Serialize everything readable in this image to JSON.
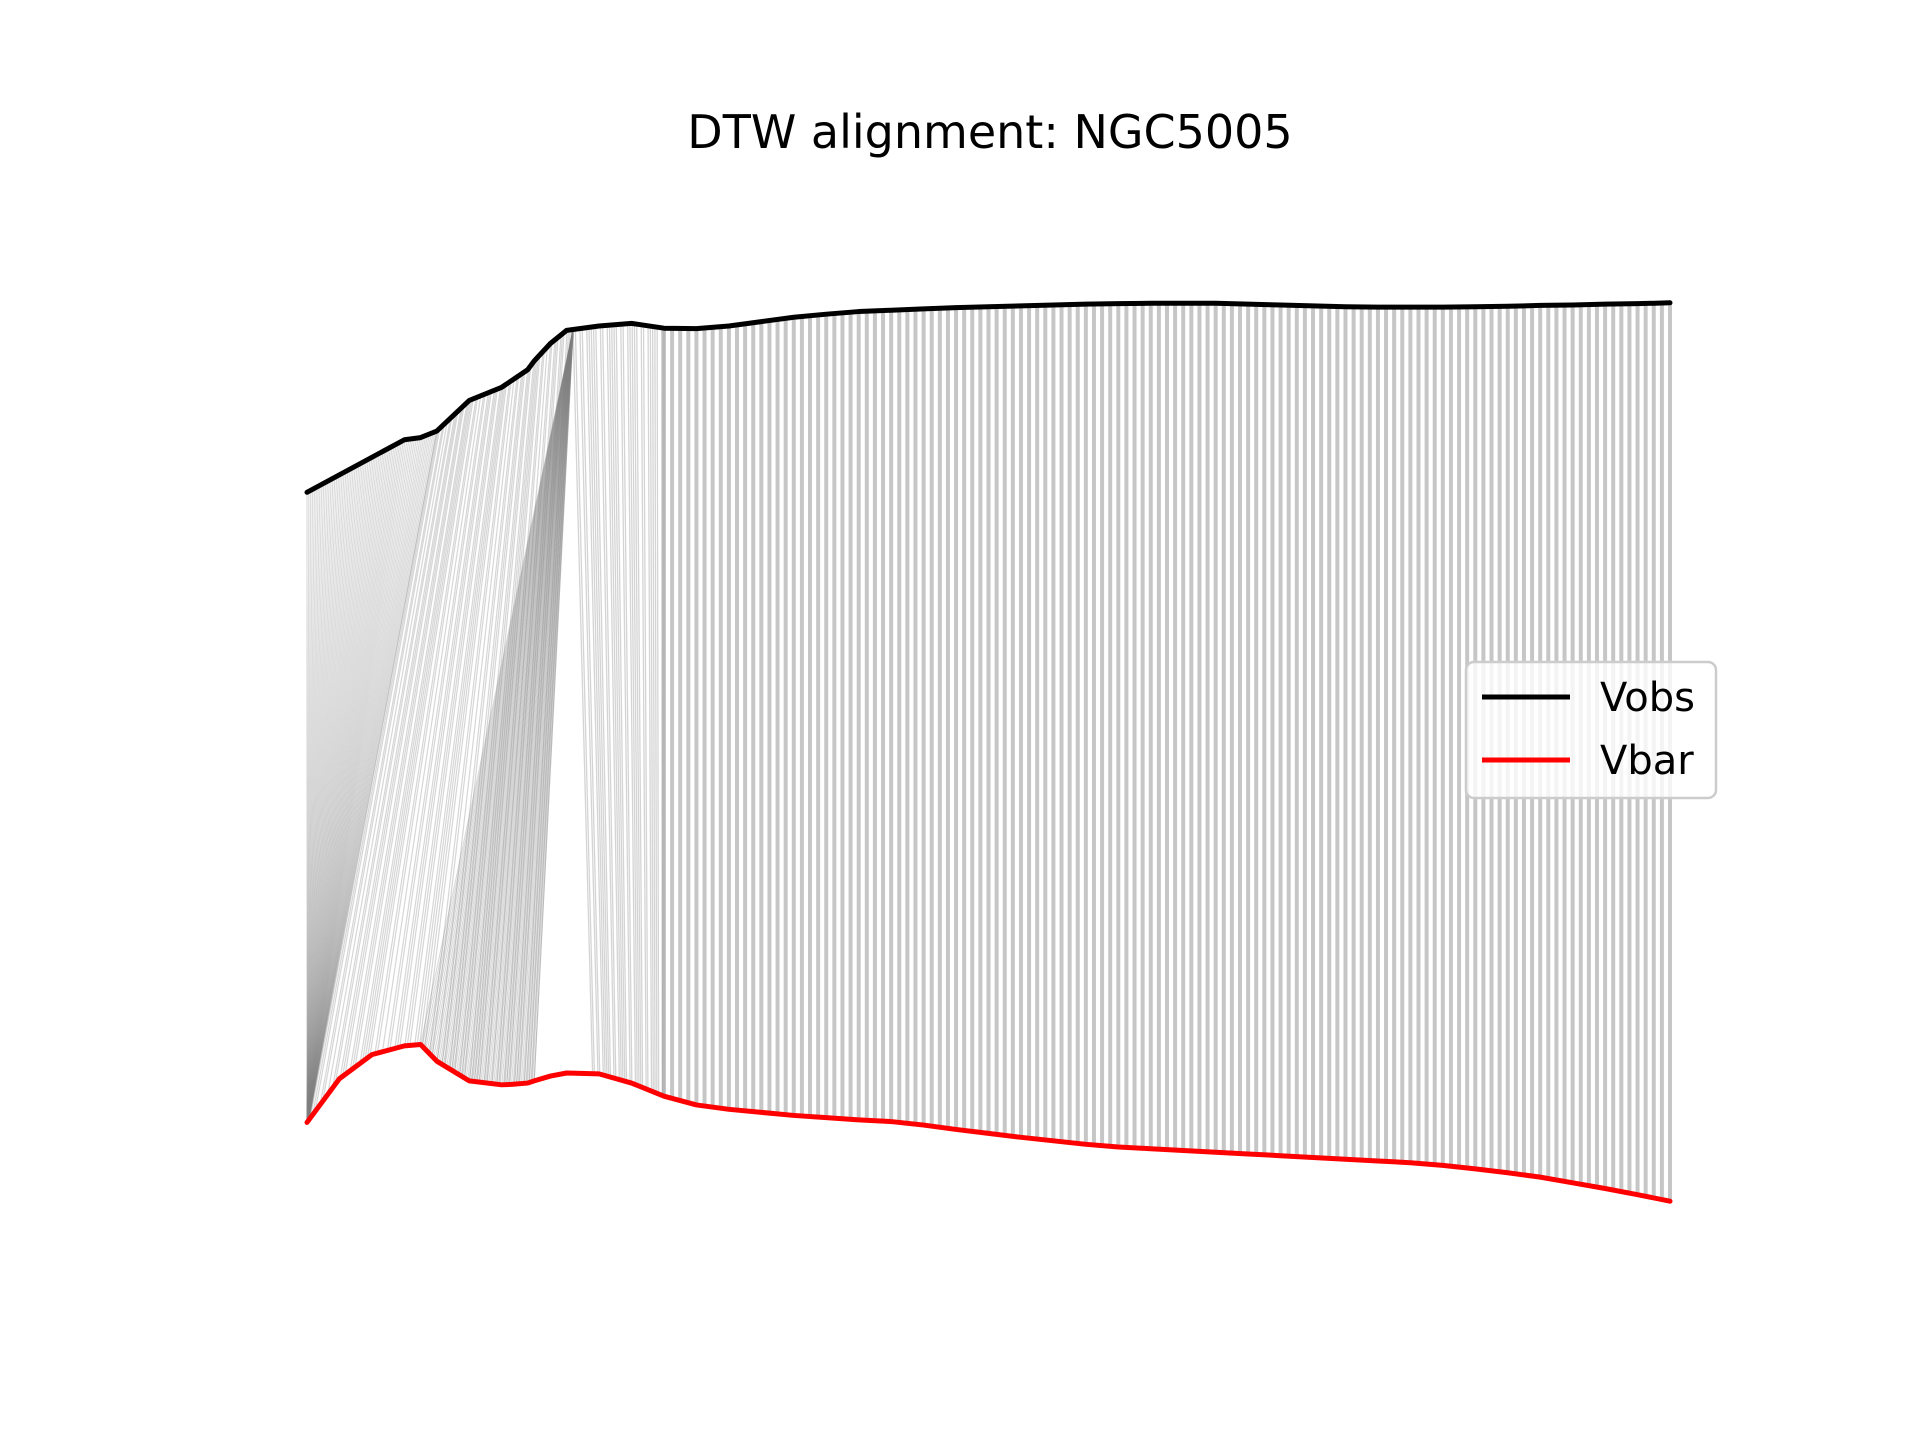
{
  "chart_data": {
    "type": "line",
    "title": "DTW alignment: NGC5005",
    "xlabel": "",
    "ylabel": "",
    "axes_visible": false,
    "grid": false,
    "legend_position": "center-right",
    "x": [
      0,
      10,
      20,
      30,
      35,
      40,
      50,
      60,
      63,
      68,
      70,
      75,
      80,
      90,
      100,
      110,
      120,
      130,
      140,
      150,
      160,
      170,
      180,
      190,
      200,
      210,
      220,
      230,
      240,
      250,
      260,
      270,
      280,
      290,
      300,
      310,
      320,
      330,
      340,
      350,
      360,
      370,
      380,
      390,
      400,
      410,
      420
    ],
    "series": [
      {
        "name": "Vobs",
        "color": "#000000",
        "values": [
          281,
          285,
          289,
          293,
          293.5,
          295,
          302,
          305,
          306.5,
          309,
          311,
          315,
          318,
          319,
          319.6,
          318.5,
          318.4,
          319,
          320,
          321,
          321.7,
          322.3,
          322.6,
          322.9,
          323.2,
          323.4,
          323.6,
          323.8,
          324,
          324.1,
          324.2,
          324.2,
          324.2,
          324,
          323.8,
          323.6,
          323.4,
          323.3,
          323.3,
          323.3,
          323.4,
          323.5,
          323.7,
          323.8,
          324,
          324.1,
          324.3
        ]
      },
      {
        "name": "Vbar",
        "color": "#ff0000",
        "values": [
          137,
          147,
          152.5,
          154.5,
          154.8,
          151,
          146.5,
          145.6,
          145.7,
          146,
          146.5,
          147.6,
          148.3,
          148.1,
          146,
          143,
          141,
          140,
          139.3,
          138.6,
          138.1,
          137.6,
          137.2,
          136.4,
          135.4,
          134.5,
          133.6,
          132.8,
          132,
          131.4,
          131,
          130.6,
          130.2,
          129.8,
          129.4,
          129,
          128.6,
          128.2,
          127.8,
          127.2,
          126.4,
          125.5,
          124.5,
          123.2,
          121.9,
          120.5,
          119
        ]
      }
    ],
    "alignment_lines": {
      "color": "#808080",
      "description": "DTW warping path connecting Vobs to Vbar"
    }
  }
}
